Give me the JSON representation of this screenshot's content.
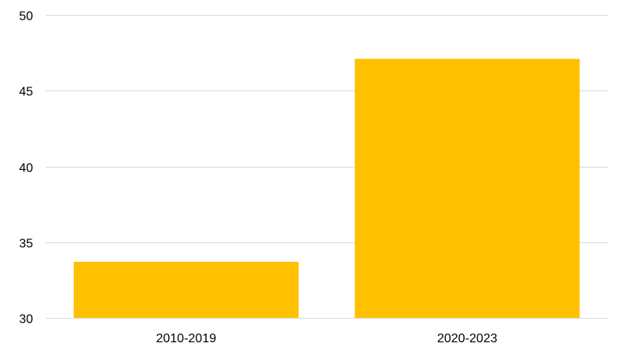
{
  "chart_data": {
    "type": "bar",
    "categories": [
      "2010-2019",
      "2020-2023"
    ],
    "values": [
      33.7,
      47.1
    ],
    "ylim": [
      30,
      50
    ],
    "yticks": [
      "30",
      "35",
      "40",
      "45",
      "50"
    ],
    "grid": true,
    "legend": "none",
    "bar_color": "#FFC000",
    "grid_color": "#D9D9D9"
  }
}
